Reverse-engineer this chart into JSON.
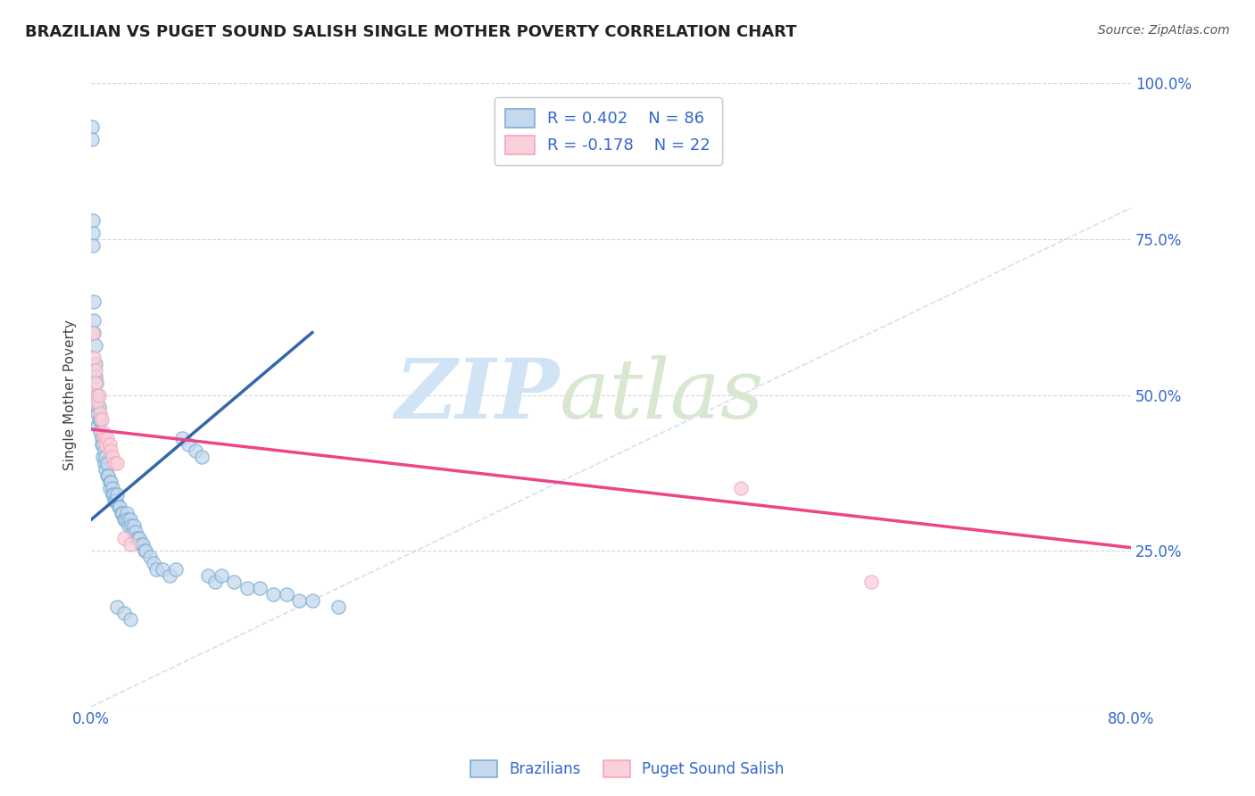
{
  "title": "BRAZILIAN VS PUGET SOUND SALISH SINGLE MOTHER POVERTY CORRELATION CHART",
  "source": "Source: ZipAtlas.com",
  "ylabel": "Single Mother Poverty",
  "xlim": [
    0,
    0.8
  ],
  "ylim": [
    0,
    1.0
  ],
  "legend_r1": "R = 0.402",
  "legend_n1": "N = 86",
  "legend_r2": "R = -0.178",
  "legend_n2": "N = 22",
  "blue_color": "#7BAFD4",
  "pink_color": "#F4A7B9",
  "blue_fill": "#C5D8ED",
  "pink_fill": "#FAD0DA",
  "grid_color": "#CCCCCC",
  "watermark_zip": "ZIP",
  "watermark_atlas": "atlas",
  "blue_line": {
    "x0": 0.0,
    "x1": 0.17,
    "y0": 0.3,
    "y1": 0.6
  },
  "pink_line": {
    "x0": 0.0,
    "x1": 0.8,
    "y0": 0.445,
    "y1": 0.255
  },
  "ref_line": {
    "x0": 0.0,
    "x1": 0.8,
    "y0": 0.0,
    "y1": 0.8
  },
  "blue_dots": [
    [
      0.0005,
      0.93
    ],
    [
      0.0005,
      0.91
    ],
    [
      0.001,
      0.78
    ],
    [
      0.001,
      0.76
    ],
    [
      0.0012,
      0.74
    ],
    [
      0.002,
      0.65
    ],
    [
      0.002,
      0.62
    ],
    [
      0.0022,
      0.6
    ],
    [
      0.003,
      0.58
    ],
    [
      0.003,
      0.55
    ],
    [
      0.003,
      0.53
    ],
    [
      0.004,
      0.52
    ],
    [
      0.004,
      0.5
    ],
    [
      0.004,
      0.48
    ],
    [
      0.005,
      0.5
    ],
    [
      0.005,
      0.47
    ],
    [
      0.005,
      0.45
    ],
    [
      0.006,
      0.48
    ],
    [
      0.006,
      0.46
    ],
    [
      0.007,
      0.46
    ],
    [
      0.007,
      0.44
    ],
    [
      0.008,
      0.43
    ],
    [
      0.008,
      0.42
    ],
    [
      0.009,
      0.42
    ],
    [
      0.009,
      0.4
    ],
    [
      0.01,
      0.41
    ],
    [
      0.01,
      0.39
    ],
    [
      0.011,
      0.4
    ],
    [
      0.011,
      0.38
    ],
    [
      0.012,
      0.39
    ],
    [
      0.012,
      0.37
    ],
    [
      0.013,
      0.37
    ],
    [
      0.014,
      0.36
    ],
    [
      0.014,
      0.35
    ],
    [
      0.015,
      0.36
    ],
    [
      0.016,
      0.35
    ],
    [
      0.016,
      0.34
    ],
    [
      0.017,
      0.34
    ],
    [
      0.018,
      0.33
    ],
    [
      0.019,
      0.33
    ],
    [
      0.02,
      0.34
    ],
    [
      0.021,
      0.32
    ],
    [
      0.022,
      0.32
    ],
    [
      0.023,
      0.31
    ],
    [
      0.024,
      0.31
    ],
    [
      0.025,
      0.3
    ],
    [
      0.026,
      0.3
    ],
    [
      0.027,
      0.31
    ],
    [
      0.028,
      0.3
    ],
    [
      0.029,
      0.29
    ],
    [
      0.03,
      0.3
    ],
    [
      0.031,
      0.29
    ],
    [
      0.032,
      0.28
    ],
    [
      0.033,
      0.29
    ],
    [
      0.034,
      0.28
    ],
    [
      0.035,
      0.27
    ],
    [
      0.036,
      0.27
    ],
    [
      0.037,
      0.27
    ],
    [
      0.038,
      0.26
    ],
    [
      0.04,
      0.26
    ],
    [
      0.041,
      0.25
    ],
    [
      0.042,
      0.25
    ],
    [
      0.045,
      0.24
    ],
    [
      0.048,
      0.23
    ],
    [
      0.05,
      0.22
    ],
    [
      0.055,
      0.22
    ],
    [
      0.06,
      0.21
    ],
    [
      0.065,
      0.22
    ],
    [
      0.07,
      0.43
    ],
    [
      0.075,
      0.42
    ],
    [
      0.08,
      0.41
    ],
    [
      0.085,
      0.4
    ],
    [
      0.09,
      0.21
    ],
    [
      0.095,
      0.2
    ],
    [
      0.1,
      0.21
    ],
    [
      0.11,
      0.2
    ],
    [
      0.12,
      0.19
    ],
    [
      0.13,
      0.19
    ],
    [
      0.14,
      0.18
    ],
    [
      0.15,
      0.18
    ],
    [
      0.16,
      0.17
    ],
    [
      0.17,
      0.17
    ],
    [
      0.19,
      0.16
    ],
    [
      0.02,
      0.16
    ],
    [
      0.025,
      0.15
    ],
    [
      0.03,
      0.14
    ]
  ],
  "pink_dots": [
    [
      0.001,
      0.6
    ],
    [
      0.002,
      0.56
    ],
    [
      0.003,
      0.54
    ],
    [
      0.003,
      0.52
    ],
    [
      0.004,
      0.5
    ],
    [
      0.005,
      0.49
    ],
    [
      0.006,
      0.5
    ],
    [
      0.007,
      0.47
    ],
    [
      0.008,
      0.46
    ],
    [
      0.009,
      0.44
    ],
    [
      0.01,
      0.43
    ],
    [
      0.011,
      0.42
    ],
    [
      0.012,
      0.43
    ],
    [
      0.014,
      0.42
    ],
    [
      0.015,
      0.41
    ],
    [
      0.016,
      0.4
    ],
    [
      0.018,
      0.39
    ],
    [
      0.02,
      0.39
    ],
    [
      0.025,
      0.27
    ],
    [
      0.03,
      0.26
    ],
    [
      0.5,
      0.35
    ],
    [
      0.6,
      0.2
    ]
  ]
}
